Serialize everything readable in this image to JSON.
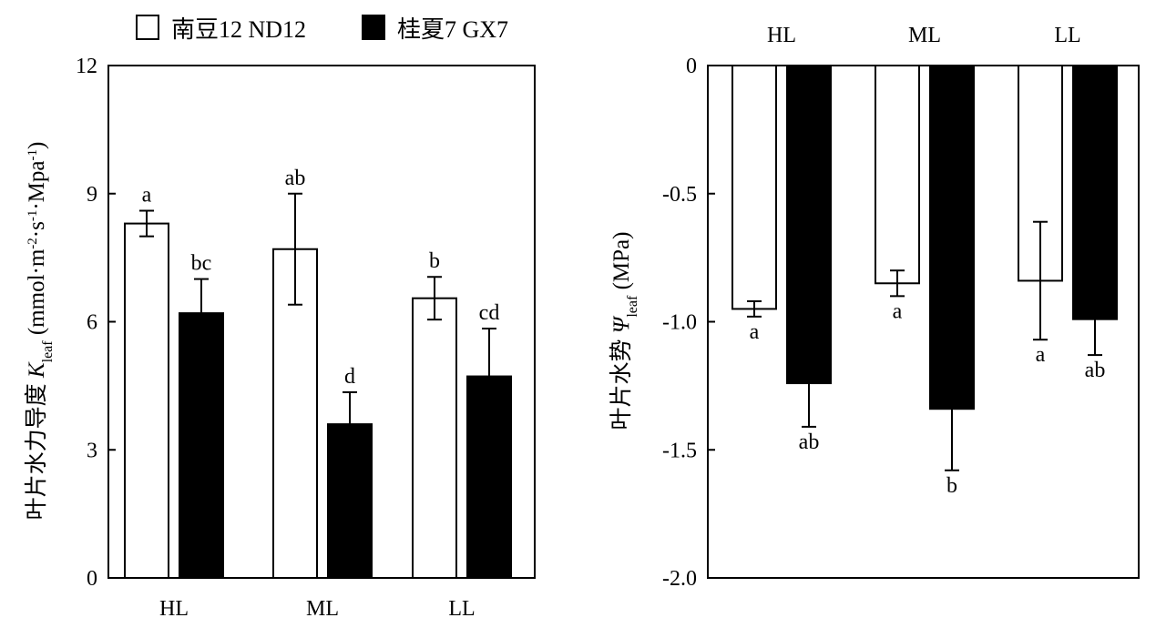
{
  "legend": {
    "items": [
      {
        "label": "南豆12 ND12",
        "color": "#ffffff"
      },
      {
        "label": "桂夏7 GX7",
        "color": "#000000"
      }
    ]
  },
  "chart_data": [
    {
      "type": "bar",
      "categories": [
        "HL",
        "ML",
        "LL"
      ],
      "ylabel": {
        "prefix": "叶片水力导度 ",
        "symbol": "K",
        "sub": "leaf",
        "unit_open": " (mmol·m",
        "sup1": "-2",
        "mid1": "·s",
        "sup2": "-1",
        "mid2": "·Mpa",
        "sup3": "-1",
        "unit_close": ")"
      },
      "ylim": [
        0,
        12
      ],
      "yticks": [
        0,
        3,
        6,
        9,
        12
      ],
      "series": [
        {
          "name": "南豆12 ND12",
          "values": [
            8.3,
            7.7,
            6.55
          ],
          "errors": [
            0.3,
            1.3,
            0.5
          ],
          "labels": [
            "a",
            "ab",
            "b"
          ],
          "fill": "#ffffff"
        },
        {
          "name": "桂夏7 GX7",
          "values": [
            6.2,
            3.6,
            4.72
          ],
          "errors": [
            0.8,
            0.75,
            1.12
          ],
          "labels": [
            "bc",
            "d",
            "cd"
          ],
          "fill": "#000000"
        }
      ]
    },
    {
      "type": "bar",
      "categories": [
        "HL",
        "ML",
        "LL"
      ],
      "ylabel": {
        "prefix": "叶片水势 ",
        "symbol": "Ψ",
        "sub": "leaf",
        "unit": " (MPa)"
      },
      "ylim": [
        -2.0,
        0
      ],
      "yticks": [
        0,
        -0.5,
        -1.0,
        -1.5,
        -2.0
      ],
      "ytick_labels": [
        "0",
        "-0.5",
        "-1.0",
        "-1.5",
        "-2.0"
      ],
      "series": [
        {
          "name": "南豆12 ND12",
          "values": [
            -0.95,
            -0.85,
            -0.84
          ],
          "errors": [
            0.03,
            0.05,
            0.23
          ],
          "labels": [
            "a",
            "a",
            "a"
          ],
          "fill": "#ffffff"
        },
        {
          "name": "桂夏7 GX7",
          "values": [
            -1.24,
            -1.34,
            -0.99
          ],
          "errors": [
            0.17,
            0.24,
            0.14
          ],
          "labels": [
            "ab",
            "b",
            "ab"
          ],
          "fill": "#000000"
        }
      ]
    }
  ]
}
